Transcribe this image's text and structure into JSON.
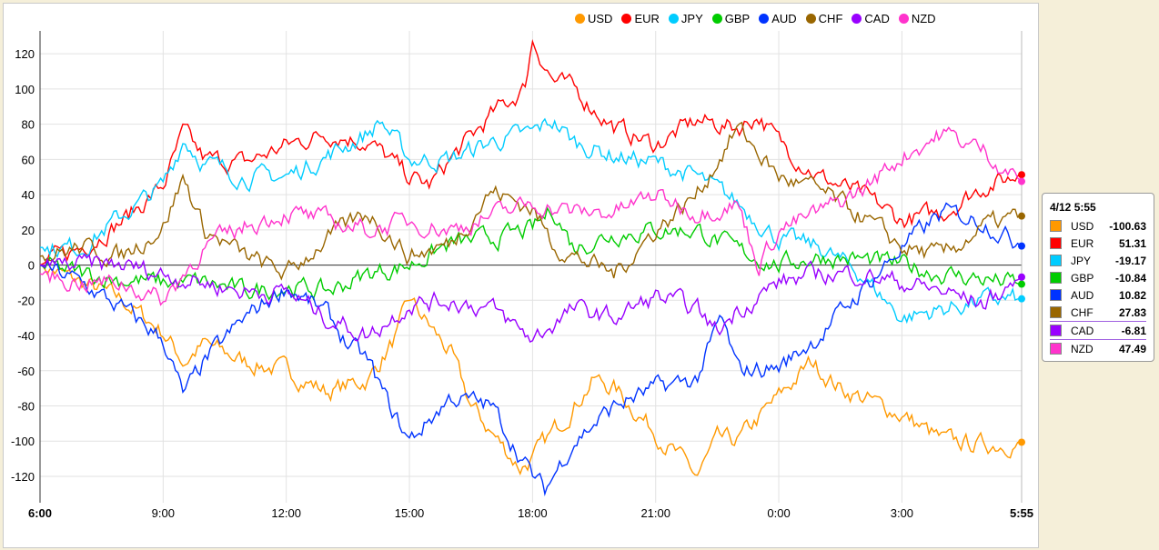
{
  "chart_data": {
    "type": "line",
    "title": "",
    "xlabel": "",
    "ylabel": "",
    "x_unit": "hours since 6:00",
    "xlim": [
      0,
      23.917
    ],
    "ylim": [
      -135,
      133
    ],
    "yticks": [
      -120,
      -100,
      -80,
      -60,
      -40,
      -20,
      0,
      20,
      40,
      60,
      80,
      100,
      120
    ],
    "xticks": [
      {
        "h": 0,
        "label": "6:00",
        "bold": true
      },
      {
        "h": 3,
        "label": "9:00"
      },
      {
        "h": 6,
        "label": "12:00"
      },
      {
        "h": 9,
        "label": "15:00"
      },
      {
        "h": 12,
        "label": "18:00"
      },
      {
        "h": 15,
        "label": "21:00"
      },
      {
        "h": 18,
        "label": "0:00"
      },
      {
        "h": 21,
        "label": "3:00"
      },
      {
        "h": 23.917,
        "label": "5:55",
        "bold": true
      }
    ],
    "grid": true,
    "legend_position": "top-right",
    "series": [
      {
        "name": "USD",
        "color": "#ff9900",
        "points": [
          [
            0,
            0
          ],
          [
            1,
            -10
          ],
          [
            2,
            -20
          ],
          [
            3,
            -38
          ],
          [
            3.5,
            -55
          ],
          [
            4,
            -45
          ],
          [
            5,
            -55
          ],
          [
            6,
            -60
          ],
          [
            7,
            -72
          ],
          [
            8,
            -65
          ],
          [
            8.7,
            -40
          ],
          [
            9,
            -20
          ],
          [
            10,
            -50
          ],
          [
            10.5,
            -80
          ],
          [
            11,
            -95
          ],
          [
            11.7,
            -115
          ],
          [
            12,
            -110
          ],
          [
            13,
            -80
          ],
          [
            13.5,
            -65
          ],
          [
            14,
            -70
          ],
          [
            15,
            -95
          ],
          [
            16,
            -120
          ],
          [
            16.5,
            -100
          ],
          [
            17,
            -100
          ],
          [
            18,
            -75
          ],
          [
            18.8,
            -55
          ],
          [
            19.5,
            -70
          ],
          [
            20,
            -75
          ],
          [
            21,
            -85
          ],
          [
            22,
            -100
          ],
          [
            23,
            -102
          ],
          [
            23.917,
            -100.63
          ]
        ]
      },
      {
        "name": "EUR",
        "color": "#ff0000",
        "points": [
          [
            0,
            0
          ],
          [
            1,
            10
          ],
          [
            2,
            25
          ],
          [
            3,
            45
          ],
          [
            3.5,
            75
          ],
          [
            4,
            60
          ],
          [
            5,
            58
          ],
          [
            6,
            68
          ],
          [
            7,
            75
          ],
          [
            8,
            70
          ],
          [
            9,
            50
          ],
          [
            9.5,
            45
          ],
          [
            10,
            60
          ],
          [
            11,
            85
          ],
          [
            11.8,
            100
          ],
          [
            12,
            128
          ],
          [
            12.5,
            105
          ],
          [
            13,
            100
          ],
          [
            14,
            78
          ],
          [
            15,
            68
          ],
          [
            15.5,
            75
          ],
          [
            16,
            82
          ],
          [
            17,
            78
          ],
          [
            17.5,
            85
          ],
          [
            18,
            70
          ],
          [
            19,
            50
          ],
          [
            20,
            40
          ],
          [
            20.7,
            30
          ],
          [
            21,
            25
          ],
          [
            22,
            30
          ],
          [
            23,
            45
          ],
          [
            23.917,
            51.31
          ]
        ]
      },
      {
        "name": "JPY",
        "color": "#00ccff",
        "points": [
          [
            0,
            10
          ],
          [
            1,
            10
          ],
          [
            2,
            28
          ],
          [
            3,
            45
          ],
          [
            3.5,
            72
          ],
          [
            4,
            58
          ],
          [
            5,
            50
          ],
          [
            6,
            50
          ],
          [
            7,
            62
          ],
          [
            8,
            75
          ],
          [
            8.3,
            82
          ],
          [
            9,
            60
          ],
          [
            10,
            60
          ],
          [
            11,
            70
          ],
          [
            12,
            75
          ],
          [
            12.5,
            82
          ],
          [
            13,
            70
          ],
          [
            14,
            62
          ],
          [
            15,
            58
          ],
          [
            16,
            50
          ],
          [
            17,
            35
          ],
          [
            18,
            15
          ],
          [
            19,
            10
          ],
          [
            20,
            -5
          ],
          [
            21,
            -30
          ],
          [
            22,
            -25
          ],
          [
            23,
            -20
          ],
          [
            23.917,
            -19.17
          ]
        ]
      },
      {
        "name": "GBP",
        "color": "#00cc00",
        "points": [
          [
            0,
            0
          ],
          [
            1,
            -5
          ],
          [
            2,
            -8
          ],
          [
            3,
            -10
          ],
          [
            4,
            -10
          ],
          [
            5,
            -15
          ],
          [
            6,
            -12
          ],
          [
            7,
            -15
          ],
          [
            8,
            -5
          ],
          [
            9,
            0
          ],
          [
            10,
            12
          ],
          [
            11,
            15
          ],
          [
            12,
            20
          ],
          [
            12.5,
            32
          ],
          [
            13,
            10
          ],
          [
            14,
            18
          ],
          [
            15,
            20
          ],
          [
            16,
            20
          ],
          [
            17,
            8
          ],
          [
            18,
            0
          ],
          [
            19,
            5
          ],
          [
            20,
            3
          ],
          [
            21,
            0
          ],
          [
            22,
            -5
          ],
          [
            23,
            -8
          ],
          [
            23.917,
            -10.84
          ]
        ]
      },
      {
        "name": "AUD",
        "color": "#0033ff",
        "points": [
          [
            0,
            0
          ],
          [
            1,
            -10
          ],
          [
            2,
            -25
          ],
          [
            3,
            -42
          ],
          [
            3.5,
            -75
          ],
          [
            4,
            -55
          ],
          [
            5,
            -30
          ],
          [
            6,
            -12
          ],
          [
            7,
            -28
          ],
          [
            7.5,
            -45
          ],
          [
            8,
            -55
          ],
          [
            8.5,
            -80
          ],
          [
            9,
            -100
          ],
          [
            10,
            -75
          ],
          [
            11,
            -80
          ],
          [
            12,
            -120
          ],
          [
            12.3,
            -128
          ],
          [
            13,
            -100
          ],
          [
            14,
            -80
          ],
          [
            15,
            -70
          ],
          [
            16,
            -65
          ],
          [
            16.6,
            -30
          ],
          [
            17,
            -60
          ],
          [
            18,
            -58
          ],
          [
            19,
            -40
          ],
          [
            20,
            -15
          ],
          [
            21,
            10
          ],
          [
            22,
            30
          ],
          [
            23,
            25
          ],
          [
            23.917,
            10.82
          ]
        ]
      },
      {
        "name": "CHF",
        "color": "#996600",
        "points": [
          [
            0,
            5
          ],
          [
            1,
            10
          ],
          [
            2,
            5
          ],
          [
            3,
            22
          ],
          [
            3.5,
            50
          ],
          [
            4,
            20
          ],
          [
            5,
            5
          ],
          [
            6,
            -5
          ],
          [
            7,
            15
          ],
          [
            8,
            30
          ],
          [
            9,
            5
          ],
          [
            10,
            12
          ],
          [
            11,
            42
          ],
          [
            12,
            32
          ],
          [
            12.5,
            12
          ],
          [
            13,
            5
          ],
          [
            14,
            -5
          ],
          [
            15,
            20
          ],
          [
            16,
            40
          ],
          [
            17,
            78
          ],
          [
            18,
            50
          ],
          [
            19,
            42
          ],
          [
            20,
            28
          ],
          [
            21,
            10
          ],
          [
            22,
            5
          ],
          [
            23,
            22
          ],
          [
            23.917,
            27.83
          ]
        ]
      },
      {
        "name": "CAD",
        "color": "#9900ff",
        "points": [
          [
            0,
            0
          ],
          [
            1,
            0
          ],
          [
            2,
            0
          ],
          [
            3,
            -5
          ],
          [
            4,
            -10
          ],
          [
            5,
            -15
          ],
          [
            6,
            -15
          ],
          [
            7,
            -30
          ],
          [
            8,
            -40
          ],
          [
            9,
            -22
          ],
          [
            10,
            -20
          ],
          [
            11,
            -25
          ],
          [
            12,
            -42
          ],
          [
            13,
            -25
          ],
          [
            14,
            -30
          ],
          [
            15,
            -18
          ],
          [
            16,
            -25
          ],
          [
            16.5,
            -38
          ],
          [
            17,
            -25
          ],
          [
            18,
            -10
          ],
          [
            19,
            -5
          ],
          [
            20,
            -5
          ],
          [
            21,
            -10
          ],
          [
            22,
            -15
          ],
          [
            23,
            -22
          ],
          [
            23.917,
            -6.81
          ]
        ]
      },
      {
        "name": "NZD",
        "color": "#ff33cc",
        "points": [
          [
            0,
            -5
          ],
          [
            1,
            -10
          ],
          [
            2,
            -10
          ],
          [
            3,
            -20
          ],
          [
            4,
            10
          ],
          [
            5,
            22
          ],
          [
            6,
            30
          ],
          [
            7,
            25
          ],
          [
            8,
            20
          ],
          [
            9,
            25
          ],
          [
            10,
            20
          ],
          [
            11,
            28
          ],
          [
            12,
            35
          ],
          [
            13,
            30
          ],
          [
            14,
            30
          ],
          [
            15,
            40
          ],
          [
            16,
            30
          ],
          [
            17,
            35
          ],
          [
            17.5,
            0
          ],
          [
            18,
            20
          ],
          [
            19,
            30
          ],
          [
            20,
            42
          ],
          [
            21,
            62
          ],
          [
            22,
            75
          ],
          [
            23,
            65
          ],
          [
            23.917,
            47.49
          ]
        ]
      }
    ]
  },
  "tooltip": {
    "title": "4/12 5:55",
    "rows": [
      {
        "name": "USD",
        "value": "-100.63",
        "color": "#ff9900"
      },
      {
        "name": "EUR",
        "value": "51.31",
        "color": "#ff0000"
      },
      {
        "name": "JPY",
        "value": "-19.17",
        "color": "#00ccff"
      },
      {
        "name": "GBP",
        "value": "-10.84",
        "color": "#00cc00"
      },
      {
        "name": "AUD",
        "value": "10.82",
        "color": "#0033ff"
      },
      {
        "name": "CHF",
        "value": "27.83",
        "color": "#996600"
      },
      {
        "name": "CAD",
        "value": "-6.81",
        "color": "#9900ff"
      },
      {
        "name": "NZD",
        "value": "47.49",
        "color": "#ff33cc"
      }
    ]
  }
}
